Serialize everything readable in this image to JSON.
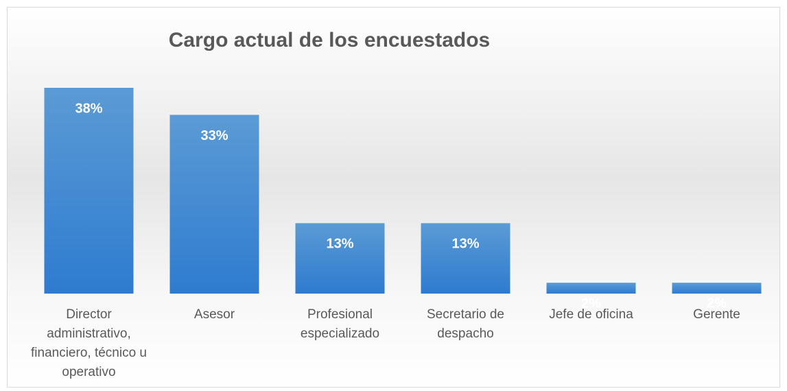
{
  "chart_data": {
    "type": "bar",
    "title": "Cargo actual de los encuestados",
    "categories": [
      "Director administrativo, financiero, técnico u operativo",
      "Asesor",
      "Profesional especializado",
      "Secretario de despacho",
      "Jefe de oficina",
      "Gerente"
    ],
    "values": [
      38,
      33,
      13,
      13,
      2,
      2
    ],
    "value_labels": [
      "38%",
      "33%",
      "13%",
      "13%",
      "2%",
      "2%"
    ],
    "color": "#4a8fd8"
  }
}
